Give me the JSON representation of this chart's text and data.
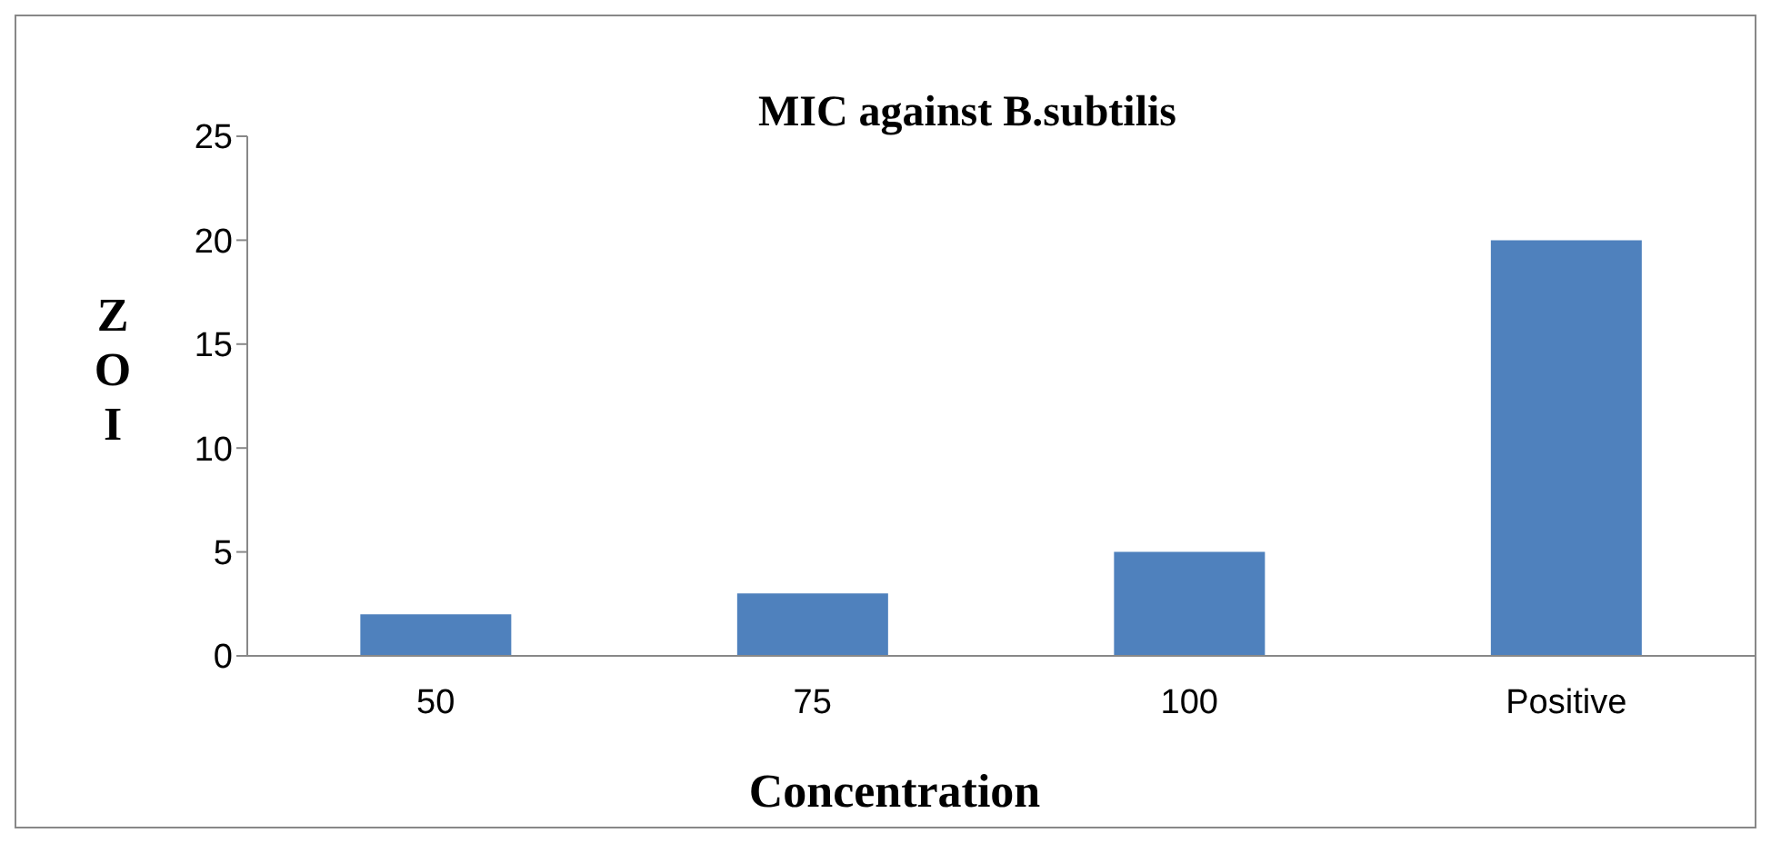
{
  "chart_data": {
    "type": "bar",
    "title": "MIC against B.subtilis",
    "xlabel": "Concentration",
    "ylabel": "ZOI",
    "categories": [
      "50",
      "75",
      "100",
      "Positive"
    ],
    "values": [
      2,
      3,
      5,
      20
    ],
    "color": "#4f81bd",
    "ylim": [
      0,
      25
    ],
    "yticks": [
      0,
      5,
      10,
      15,
      20,
      25
    ],
    "grid": false,
    "legend": false
  }
}
